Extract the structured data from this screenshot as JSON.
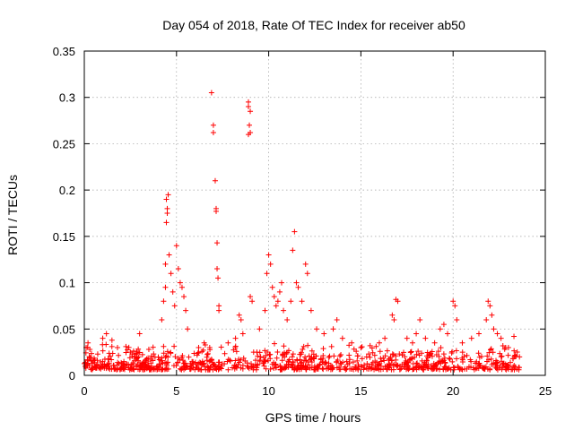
{
  "chart_data": {
    "type": "scatter",
    "title": "Day 054 of 2018, Rate Of TEC Index for receiver ab50",
    "xlabel": "GPS time / hours",
    "ylabel": "ROTI / TECUs",
    "xlim": [
      0,
      25
    ],
    "ylim": [
      0,
      0.35
    ],
    "x_ticks": [
      0,
      5,
      10,
      15,
      20,
      25
    ],
    "y_ticks": [
      0,
      0.05,
      0.1,
      0.15,
      0.2,
      0.25,
      0.3,
      0.35
    ],
    "x_tick_labels": [
      "0",
      "5",
      "10",
      "15",
      "20",
      "25"
    ],
    "y_tick_labels": [
      "0",
      "0.05",
      "0.1",
      "0.15",
      "0.2",
      "0.25",
      "0.3",
      "0.35"
    ],
    "grid": true,
    "marker": "plus",
    "color": "#ff0000",
    "series": [
      {
        "points": [
          [
            0.1,
            0.03
          ],
          [
            0.2,
            0.035
          ],
          [
            0.3,
            0.028
          ],
          [
            1.0,
            0.04
          ],
          [
            1.2,
            0.045
          ],
          [
            1.5,
            0.038
          ],
          [
            1.8,
            0.03
          ],
          [
            2.5,
            0.025
          ],
          [
            3.0,
            0.045
          ],
          [
            3.5,
            0.028
          ],
          [
            4.2,
            0.06
          ],
          [
            4.3,
            0.08
          ],
          [
            4.4,
            0.095
          ],
          [
            4.4,
            0.12
          ],
          [
            4.45,
            0.165
          ],
          [
            4.5,
            0.175
          ],
          [
            4.5,
            0.18
          ],
          [
            4.45,
            0.19
          ],
          [
            4.55,
            0.195
          ],
          [
            4.6,
            0.13
          ],
          [
            4.7,
            0.11
          ],
          [
            4.8,
            0.09
          ],
          [
            4.9,
            0.075
          ],
          [
            5.0,
            0.14
          ],
          [
            5.1,
            0.115
          ],
          [
            5.2,
            0.1
          ],
          [
            5.3,
            0.095
          ],
          [
            5.4,
            0.085
          ],
          [
            5.5,
            0.07
          ],
          [
            5.6,
            0.05
          ],
          [
            6.2,
            0.03
          ],
          [
            6.5,
            0.035
          ],
          [
            6.8,
            0.03
          ],
          [
            6.9,
            0.305
          ],
          [
            7.0,
            0.27
          ],
          [
            7.0,
            0.262
          ],
          [
            7.1,
            0.21
          ],
          [
            7.15,
            0.18
          ],
          [
            7.15,
            0.177
          ],
          [
            7.2,
            0.143
          ],
          [
            7.2,
            0.115
          ],
          [
            7.25,
            0.105
          ],
          [
            7.3,
            0.075
          ],
          [
            7.3,
            0.07
          ],
          [
            7.8,
            0.035
          ],
          [
            8.2,
            0.04
          ],
          [
            8.4,
            0.065
          ],
          [
            8.5,
            0.06
          ],
          [
            8.6,
            0.045
          ],
          [
            8.9,
            0.295
          ],
          [
            8.9,
            0.29
          ],
          [
            9.0,
            0.285
          ],
          [
            8.95,
            0.27
          ],
          [
            9.0,
            0.262
          ],
          [
            8.9,
            0.26
          ],
          [
            9.0,
            0.085
          ],
          [
            9.1,
            0.08
          ],
          [
            9.5,
            0.05
          ],
          [
            9.8,
            0.07
          ],
          [
            9.9,
            0.11
          ],
          [
            10.0,
            0.13
          ],
          [
            10.1,
            0.12
          ],
          [
            10.2,
            0.095
          ],
          [
            10.3,
            0.085
          ],
          [
            10.4,
            0.075
          ],
          [
            10.5,
            0.08
          ],
          [
            10.6,
            0.09
          ],
          [
            10.7,
            0.1
          ],
          [
            10.8,
            0.07
          ],
          [
            11.0,
            0.06
          ],
          [
            11.2,
            0.08
          ],
          [
            11.3,
            0.135
          ],
          [
            11.4,
            0.155
          ],
          [
            11.5,
            0.1
          ],
          [
            11.6,
            0.095
          ],
          [
            11.8,
            0.08
          ],
          [
            12.0,
            0.12
          ],
          [
            12.1,
            0.11
          ],
          [
            12.3,
            0.07
          ],
          [
            12.6,
            0.05
          ],
          [
            13.0,
            0.045
          ],
          [
            13.5,
            0.05
          ],
          [
            13.7,
            0.06
          ],
          [
            14.0,
            0.04
          ],
          [
            14.5,
            0.035
          ],
          [
            15.0,
            0.03
          ],
          [
            15.5,
            0.032
          ],
          [
            16.0,
            0.035
          ],
          [
            16.3,
            0.04
          ],
          [
            16.7,
            0.065
          ],
          [
            16.8,
            0.06
          ],
          [
            16.9,
            0.082
          ],
          [
            17.0,
            0.08
          ],
          [
            17.5,
            0.04
          ],
          [
            17.8,
            0.035
          ],
          [
            18.0,
            0.045
          ],
          [
            18.2,
            0.06
          ],
          [
            18.5,
            0.04
          ],
          [
            19.0,
            0.035
          ],
          [
            19.3,
            0.05
          ],
          [
            19.5,
            0.055
          ],
          [
            19.7,
            0.045
          ],
          [
            20.0,
            0.08
          ],
          [
            20.1,
            0.075
          ],
          [
            20.2,
            0.06
          ],
          [
            20.5,
            0.035
          ],
          [
            21.0,
            0.04
          ],
          [
            21.4,
            0.045
          ],
          [
            21.8,
            0.06
          ],
          [
            21.9,
            0.08
          ],
          [
            22.0,
            0.075
          ],
          [
            22.1,
            0.065
          ],
          [
            22.2,
            0.05
          ],
          [
            22.4,
            0.045
          ],
          [
            22.6,
            0.04
          ],
          [
            23.0,
            0.03
          ],
          [
            23.3,
            0.042
          ],
          [
            23.6,
            0.02
          ]
        ]
      }
    ]
  }
}
